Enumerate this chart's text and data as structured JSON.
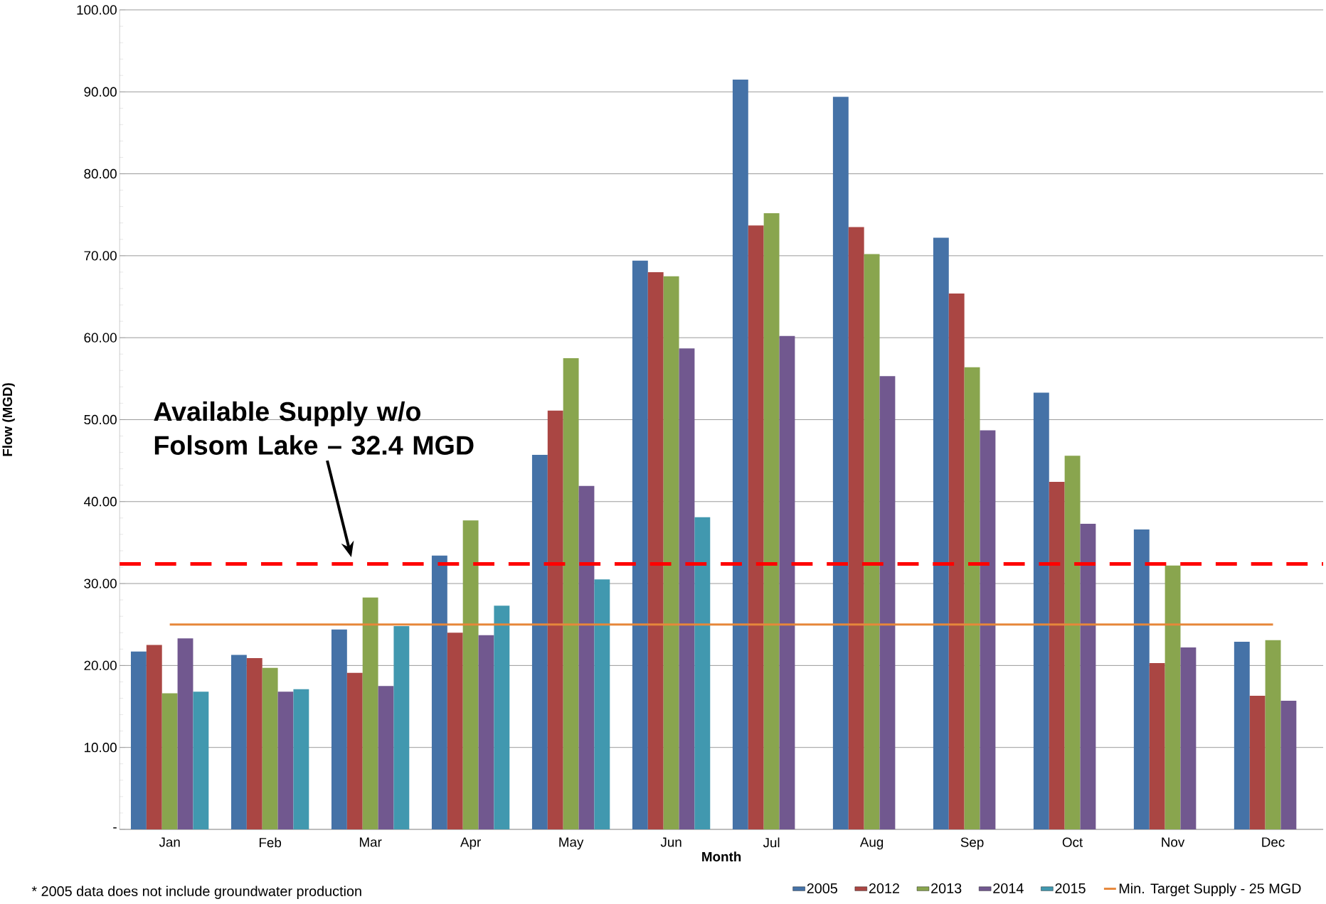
{
  "chart_data": {
    "type": "bar",
    "xlabel": "Month",
    "ylabel": "Flow (MGD)",
    "categories": [
      "Jan",
      "Feb",
      "Mar",
      "Apr",
      "May",
      "Jun",
      "Jul",
      "Aug",
      "Sep",
      "Oct",
      "Nov",
      "Dec"
    ],
    "series": [
      {
        "name": "2005",
        "color": "#4572a7",
        "values": [
          21.7,
          21.3,
          24.4,
          33.4,
          45.7,
          69.4,
          91.5,
          89.4,
          72.2,
          53.3,
          36.6,
          22.9
        ]
      },
      {
        "name": "2012",
        "color": "#aa4643",
        "values": [
          22.5,
          20.9,
          19.1,
          24.0,
          51.1,
          68.0,
          73.7,
          73.5,
          65.4,
          42.4,
          20.3,
          16.3
        ]
      },
      {
        "name": "2013",
        "color": "#89a54e",
        "values": [
          16.6,
          19.7,
          28.3,
          37.7,
          57.5,
          67.5,
          75.2,
          70.2,
          56.4,
          45.6,
          32.2,
          23.1
        ]
      },
      {
        "name": "2014",
        "color": "#71588f",
        "values": [
          23.3,
          16.8,
          17.5,
          23.7,
          41.9,
          58.7,
          60.2,
          55.3,
          48.7,
          37.3,
          22.2,
          15.7
        ]
      },
      {
        "name": "2015",
        "color": "#4198af",
        "values": [
          16.8,
          17.1,
          24.8,
          27.3,
          30.5,
          38.1,
          null,
          null,
          null,
          null,
          null,
          null
        ]
      },
      {
        "name": "Min. Target Supply - 25 MGD",
        "type": "line",
        "color": "#e6873a",
        "values": [
          25,
          25,
          25,
          25,
          25,
          25,
          25,
          25,
          25,
          25,
          25,
          25
        ]
      }
    ],
    "ylim": [
      0,
      100
    ],
    "yticks": [
      {
        "value": 0,
        "label": "-"
      },
      {
        "value": 10,
        "label": "10.00"
      },
      {
        "value": 20,
        "label": "20.00"
      },
      {
        "value": 30,
        "label": "30.00"
      },
      {
        "value": 40,
        "label": "40.00"
      },
      {
        "value": 50,
        "label": "50.00"
      },
      {
        "value": 60,
        "label": "60.00"
      },
      {
        "value": 70,
        "label": "70.00"
      },
      {
        "value": 80,
        "label": "80.00"
      },
      {
        "value": 90,
        "label": "90.00"
      },
      {
        "value": 100,
        "label": "100.00"
      }
    ],
    "ref_lines": [
      {
        "axis": "y",
        "value": 32.4,
        "color": "#ff0000",
        "line_style": "dashed"
      }
    ],
    "annotations": [
      "Available Supply w/o Folsom Lake – 32.4 MGD",
      "* 2005 data does not include groundwater production"
    ],
    "grid": "y",
    "legend": "bottom"
  }
}
